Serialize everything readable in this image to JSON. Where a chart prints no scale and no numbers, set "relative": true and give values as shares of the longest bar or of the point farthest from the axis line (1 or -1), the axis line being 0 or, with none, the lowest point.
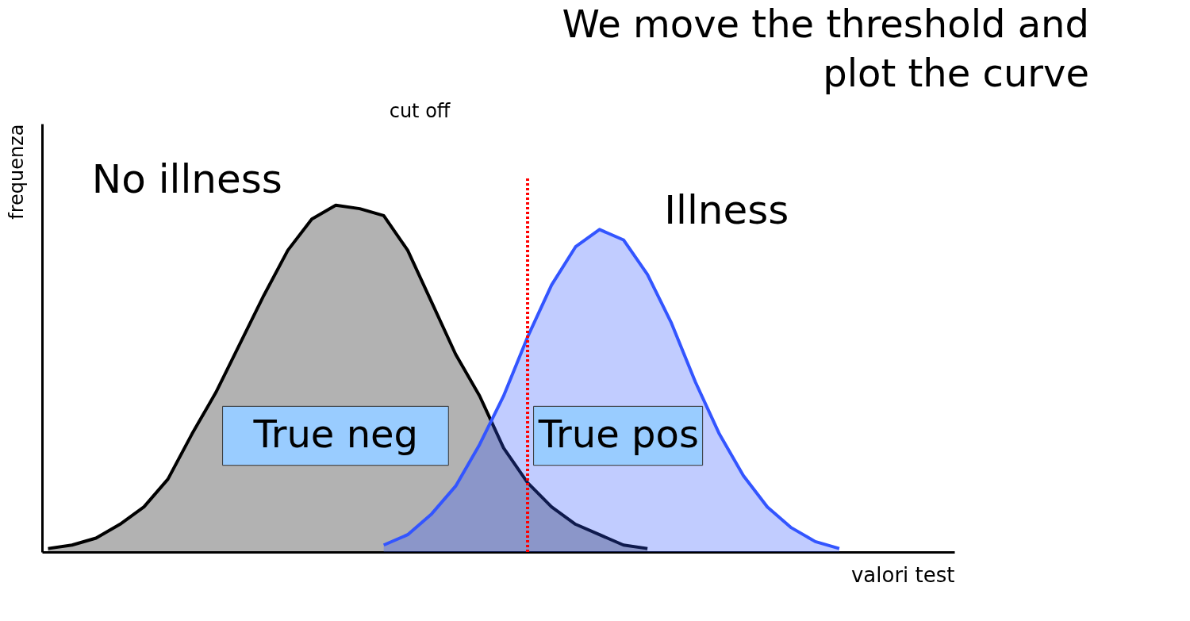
{
  "chart_data": {
    "type": "area",
    "title": "We move the threshold and plot  the curve",
    "xlabel": "valori test",
    "ylabel": "frequenza",
    "relative": true,
    "categories": [
      null,
      null,
      null,
      null,
      null,
      null,
      null,
      null,
      null,
      null,
      null,
      null,
      null,
      null,
      null,
      null,
      null,
      null,
      null,
      null,
      null,
      null,
      null,
      null,
      null,
      null,
      null,
      null,
      null,
      null,
      null,
      null,
      null,
      null
    ],
    "series": [
      {
        "name": "No illness",
        "color": "#000000",
        "values": [
          0.01,
          0.02,
          0.04,
          0.08,
          0.13,
          0.21,
          0.34,
          0.46,
          0.6,
          0.74,
          0.87,
          0.96,
          1,
          0.99,
          0.97,
          0.87,
          0.72,
          0.57,
          0.45,
          0.3,
          0.2,
          0.13,
          0.08,
          0.05,
          0.02,
          0.01,
          null,
          null,
          null,
          null,
          null,
          null,
          null,
          null
        ]
      },
      {
        "name": "Illness",
        "color": "#3355ff",
        "values": [
          null,
          null,
          null,
          null,
          null,
          null,
          null,
          null,
          null,
          null,
          null,
          null,
          null,
          null,
          0.02,
          0.05,
          0.11,
          0.19,
          0.31,
          0.45,
          0.62,
          0.77,
          0.88,
          0.93,
          0.9,
          0.8,
          0.66,
          0.49,
          0.34,
          0.22,
          0.13,
          0.07,
          0.03,
          0.01
        ]
      }
    ],
    "annotations": [
      "True neg",
      "True pos",
      "cut off"
    ]
  }
}
